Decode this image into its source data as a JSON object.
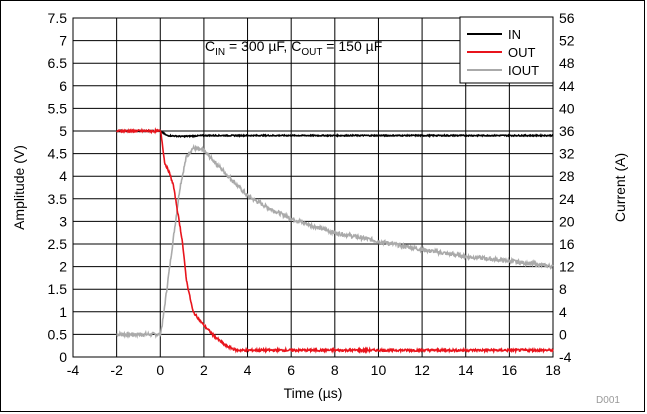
{
  "chart_data": {
    "type": "line",
    "title": "",
    "xlabel": "Time (µs)",
    "ylabel": "Amplitude (V)",
    "y2label": "Current (A)",
    "xlim": [
      -4,
      18
    ],
    "ylim": [
      0,
      7.5
    ],
    "y2lim": [
      -4,
      56
    ],
    "x_ticks": [
      "-4",
      "-2",
      "0",
      "2",
      "4",
      "6",
      "8",
      "10",
      "12",
      "14",
      "16",
      "18"
    ],
    "y_ticks": [
      "0",
      "0.5",
      "1",
      "1.5",
      "2",
      "2.5",
      "3",
      "3.5",
      "4",
      "4.5",
      "5",
      "5.5",
      "6",
      "6.5",
      "7",
      "7.5"
    ],
    "y2_ticks": [
      "-4",
      "0",
      "4",
      "8",
      "12",
      "16",
      "20",
      "24",
      "28",
      "32",
      "36",
      "40",
      "44",
      "48",
      "52",
      "56"
    ],
    "grid": true,
    "legend_position": "top-right",
    "annotation": {
      "c_in_main": "C",
      "c_in_sub": "IN",
      "c_in_value": " = 300 µF, ",
      "c_out_main": "C",
      "c_out_sub": "OUT",
      "c_out_value": " = 150 µF"
    },
    "footer": "D001",
    "series": [
      {
        "name": "IN",
        "color": "#000000",
        "axis": "left",
        "points": [
          [
            -2,
            5.0
          ],
          [
            0,
            5.0
          ],
          [
            0.3,
            4.9
          ],
          [
            1,
            4.88
          ],
          [
            2,
            4.9
          ],
          [
            4,
            4.9
          ],
          [
            8,
            4.9
          ],
          [
            12,
            4.9
          ],
          [
            16,
            4.9
          ],
          [
            18,
            4.9
          ]
        ]
      },
      {
        "name": "OUT",
        "color": "#e8141c",
        "axis": "left",
        "points": [
          [
            -2,
            5.0
          ],
          [
            0,
            5.0
          ],
          [
            0.05,
            4.9
          ],
          [
            0.2,
            4.3
          ],
          [
            0.4,
            4.1
          ],
          [
            0.6,
            3.8
          ],
          [
            0.8,
            3.2
          ],
          [
            1.0,
            2.6
          ],
          [
            1.2,
            1.7
          ],
          [
            1.5,
            1.0
          ],
          [
            2.0,
            0.7
          ],
          [
            2.5,
            0.45
          ],
          [
            3.0,
            0.25
          ],
          [
            3.5,
            0.15
          ],
          [
            4,
            0.15
          ],
          [
            8,
            0.15
          ],
          [
            12,
            0.15
          ],
          [
            16,
            0.15
          ],
          [
            18,
            0.15
          ]
        ]
      },
      {
        "name": "IOUT",
        "color": "#aaaaaa",
        "axis": "right",
        "points": [
          [
            -2,
            0
          ],
          [
            -1,
            0
          ],
          [
            0,
            0
          ],
          [
            0.1,
            2
          ],
          [
            0.5,
            14
          ],
          [
            0.9,
            26
          ],
          [
            1.2,
            31.5
          ],
          [
            1.5,
            33
          ],
          [
            2.0,
            32.5
          ],
          [
            2.5,
            30.5
          ],
          [
            3.0,
            28.5
          ],
          [
            4.0,
            24.5
          ],
          [
            5.0,
            22.3
          ],
          [
            6.0,
            20.5
          ],
          [
            7.0,
            19.2
          ],
          [
            8.0,
            18.0
          ],
          [
            10.0,
            16.5
          ],
          [
            12.0,
            15.0
          ],
          [
            14.0,
            13.8
          ],
          [
            16.0,
            13.0
          ],
          [
            18.0,
            12.0
          ]
        ]
      }
    ]
  }
}
